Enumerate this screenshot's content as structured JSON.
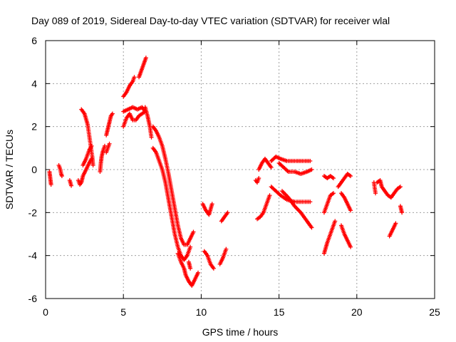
{
  "chart_data": {
    "type": "scatter",
    "title": "Day 089 of 2019, Sidereal Day-to-day VTEC variation (SDTVAR) for receiver wlal",
    "xlabel": "GPS time / hours",
    "ylabel": "SDTVAR / TECUs",
    "xlim": [
      0,
      25
    ],
    "ylim": [
      -6,
      6
    ],
    "xticks": [
      0,
      5,
      10,
      15,
      20,
      25
    ],
    "yticks": [
      -6,
      -4,
      -2,
      0,
      2,
      4,
      6
    ],
    "xtick_labels": [
      "0",
      "5",
      "10",
      "15",
      "20",
      "25"
    ],
    "ytick_labels": [
      "-6",
      "-4",
      "-2",
      "0",
      "2",
      "4",
      "6"
    ],
    "grid": true,
    "marker": "+",
    "color": "#ff0000",
    "series": [
      {
        "segments": [
          [
            [
              0.25,
              -0.1
            ],
            [
              0.3,
              -0.4
            ],
            [
              0.35,
              -0.7
            ]
          ],
          [
            [
              0.85,
              0.2
            ],
            [
              0.95,
              0.0
            ],
            [
              1.0,
              -0.2
            ],
            [
              1.05,
              -0.3
            ]
          ],
          [
            [
              1.55,
              -0.5
            ],
            [
              1.65,
              -0.75
            ]
          ],
          [
            [
              2.1,
              -0.5
            ],
            [
              2.2,
              -0.7
            ],
            [
              2.3,
              -0.6
            ],
            [
              2.4,
              -0.3
            ],
            [
              2.6,
              0.0
            ],
            [
              2.8,
              0.3
            ],
            [
              2.95,
              0.5
            ]
          ],
          [
            [
              2.3,
              2.8
            ],
            [
              2.5,
              2.6
            ],
            [
              2.7,
              2.1
            ],
            [
              2.8,
              1.6
            ],
            [
              2.9,
              1.1
            ],
            [
              3.0,
              0.6
            ],
            [
              3.05,
              0.2
            ]
          ],
          [
            [
              2.4,
              0.2
            ],
            [
              2.6,
              0.5
            ],
            [
              2.8,
              0.9
            ],
            [
              2.95,
              1.1
            ]
          ],
          [
            [
              3.5,
              -0.1
            ],
            [
              3.55,
              0.3
            ],
            [
              3.6,
              0.6
            ],
            [
              3.7,
              0.9
            ],
            [
              3.8,
              1.1
            ]
          ],
          [
            [
              3.9,
              0.8
            ],
            [
              4.0,
              1.0
            ],
            [
              4.1,
              1.2
            ]
          ],
          [
            [
              3.9,
              1.6
            ],
            [
              4.0,
              1.9
            ],
            [
              4.1,
              2.2
            ],
            [
              4.2,
              2.5
            ],
            [
              4.3,
              2.6
            ]
          ],
          [
            [
              5.0,
              3.4
            ],
            [
              5.2,
              3.6
            ],
            [
              5.4,
              3.9
            ],
            [
              5.6,
              4.1
            ],
            [
              5.7,
              4.3
            ]
          ],
          [
            [
              6.0,
              4.3
            ],
            [
              6.15,
              4.6
            ],
            [
              6.3,
              4.9
            ],
            [
              6.45,
              5.2
            ]
          ],
          [
            [
              5.0,
              2.0
            ],
            [
              5.2,
              2.4
            ],
            [
              5.4,
              2.6
            ],
            [
              5.6,
              2.3
            ],
            [
              5.8,
              2.3
            ],
            [
              6.0,
              2.5
            ],
            [
              6.2,
              2.6
            ],
            [
              6.4,
              2.7
            ]
          ],
          [
            [
              5.0,
              2.7
            ],
            [
              5.3,
              2.8
            ],
            [
              5.6,
              2.9
            ],
            [
              5.9,
              2.8
            ],
            [
              6.2,
              2.9
            ],
            [
              6.4,
              2.7
            ]
          ],
          [
            [
              6.4,
              2.9
            ],
            [
              6.55,
              2.5
            ],
            [
              6.7,
              2.0
            ],
            [
              6.8,
              1.5
            ]
          ],
          [
            [
              6.9,
              2.0
            ],
            [
              7.1,
              1.8
            ],
            [
              7.3,
              1.5
            ],
            [
              7.5,
              1.1
            ],
            [
              7.7,
              0.5
            ],
            [
              7.9,
              -0.2
            ],
            [
              8.1,
              -1.0
            ],
            [
              8.3,
              -1.8
            ],
            [
              8.5,
              -2.6
            ],
            [
              8.7,
              -3.2
            ],
            [
              8.9,
              -3.5
            ],
            [
              9.1,
              -3.5
            ],
            [
              9.3,
              -3.2
            ],
            [
              9.5,
              -2.9
            ]
          ],
          [
            [
              6.9,
              1.0
            ],
            [
              7.1,
              0.8
            ],
            [
              7.3,
              0.4
            ],
            [
              7.5,
              0.0
            ],
            [
              7.7,
              -0.6
            ],
            [
              7.9,
              -1.4
            ],
            [
              8.1,
              -2.2
            ],
            [
              8.3,
              -3.0
            ],
            [
              8.5,
              -3.6
            ],
            [
              8.7,
              -4.0
            ],
            [
              8.9,
              -4.2
            ],
            [
              9.1,
              -4.0
            ],
            [
              9.3,
              -3.6
            ]
          ],
          [
            [
              8.5,
              -3.9
            ],
            [
              8.7,
              -4.3
            ],
            [
              8.9,
              -4.6
            ],
            [
              9.0,
              -4.9
            ],
            [
              9.2,
              -5.2
            ],
            [
              9.4,
              -5.4
            ],
            [
              9.6,
              -5.1
            ],
            [
              9.8,
              -4.8
            ]
          ],
          [
            [
              9.2,
              -4.3
            ],
            [
              9.3,
              -4.6
            ]
          ],
          [
            [
              10.2,
              -3.8
            ],
            [
              10.4,
              -4.0
            ],
            [
              10.6,
              -4.4
            ],
            [
              10.8,
              -4.6
            ]
          ],
          [
            [
              10.1,
              -1.6
            ],
            [
              10.3,
              -1.9
            ],
            [
              10.5,
              -2.1
            ],
            [
              10.7,
              -1.6
            ]
          ],
          [
            [
              11.2,
              -4.4
            ],
            [
              11.4,
              -4.1
            ],
            [
              11.6,
              -3.7
            ]
          ],
          [
            [
              11.3,
              -2.4
            ],
            [
              11.5,
              -2.2
            ],
            [
              11.7,
              -2.0
            ]
          ],
          [
            [
              13.5,
              -0.5
            ],
            [
              13.6,
              -0.6
            ],
            [
              13.7,
              -0.4
            ]
          ],
          [
            [
              13.6,
              -2.3
            ],
            [
              13.8,
              -2.2
            ],
            [
              14.0,
              -2.0
            ],
            [
              14.2,
              -1.6
            ],
            [
              14.4,
              -1.2
            ]
          ],
          [
            [
              13.7,
              0.0
            ],
            [
              13.9,
              0.3
            ],
            [
              14.1,
              0.5
            ],
            [
              14.3,
              0.3
            ],
            [
              14.5,
              0.1
            ]
          ],
          [
            [
              14.5,
              -0.8
            ],
            [
              14.8,
              -1.0
            ],
            [
              15.1,
              -1.2
            ],
            [
              15.5,
              -1.4
            ],
            [
              16.0,
              -1.5
            ],
            [
              16.5,
              -1.5
            ],
            [
              17.0,
              -1.5
            ]
          ],
          [
            [
              14.5,
              0.4
            ],
            [
              14.8,
              0.6
            ],
            [
              15.1,
              0.5
            ],
            [
              15.5,
              0.4
            ],
            [
              16.0,
              0.4
            ],
            [
              16.5,
              0.4
            ],
            [
              17.0,
              0.4
            ]
          ],
          [
            [
              15.0,
              0.3
            ],
            [
              15.3,
              0.1
            ],
            [
              15.6,
              -0.1
            ],
            [
              16.0,
              -0.1
            ],
            [
              16.4,
              -0.2
            ],
            [
              16.8,
              -0.1
            ],
            [
              17.1,
              0.0
            ]
          ],
          [
            [
              15.2,
              -1.0
            ],
            [
              15.6,
              -1.3
            ],
            [
              16.0,
              -1.7
            ],
            [
              16.4,
              -2.0
            ],
            [
              16.8,
              -2.4
            ],
            [
              17.1,
              -2.7
            ]
          ],
          [
            [
              17.9,
              -0.3
            ],
            [
              18.1,
              -0.4
            ],
            [
              18.3,
              -0.3
            ],
            [
              18.5,
              -0.4
            ]
          ],
          [
            [
              17.9,
              -2.0
            ],
            [
              18.1,
              -1.6
            ],
            [
              18.3,
              -1.2
            ],
            [
              18.5,
              -1.1
            ]
          ],
          [
            [
              17.9,
              -3.9
            ],
            [
              18.1,
              -3.4
            ],
            [
              18.3,
              -3.0
            ],
            [
              18.5,
              -2.6
            ],
            [
              18.6,
              -2.4
            ]
          ],
          [
            [
              18.8,
              -0.8
            ],
            [
              19.0,
              -0.6
            ],
            [
              19.2,
              -0.4
            ],
            [
              19.4,
              -0.2
            ],
            [
              19.6,
              -0.3
            ]
          ],
          [
            [
              19.0,
              -1.1
            ],
            [
              19.2,
              -1.3
            ],
            [
              19.4,
              -1.6
            ],
            [
              19.6,
              -1.9
            ]
          ],
          [
            [
              19.0,
              -2.6
            ],
            [
              19.2,
              -3.0
            ],
            [
              19.4,
              -3.3
            ],
            [
              19.6,
              -3.6
            ]
          ],
          [
            [
              21.1,
              -0.6
            ],
            [
              21.2,
              -1.1
            ]
          ],
          [
            [
              21.3,
              -0.6
            ],
            [
              21.5,
              -0.5
            ],
            [
              21.6,
              -0.8
            ],
            [
              21.8,
              -1.0
            ],
            [
              22.0,
              -1.2
            ],
            [
              22.2,
              -1.3
            ],
            [
              22.4,
              -1.1
            ],
            [
              22.6,
              -0.9
            ],
            [
              22.8,
              -0.8
            ]
          ],
          [
            [
              22.1,
              -3.1
            ],
            [
              22.3,
              -2.8
            ],
            [
              22.5,
              -2.5
            ]
          ],
          [
            [
              22.8,
              -1.7
            ],
            [
              22.9,
              -2.0
            ]
          ]
        ]
      }
    ]
  }
}
